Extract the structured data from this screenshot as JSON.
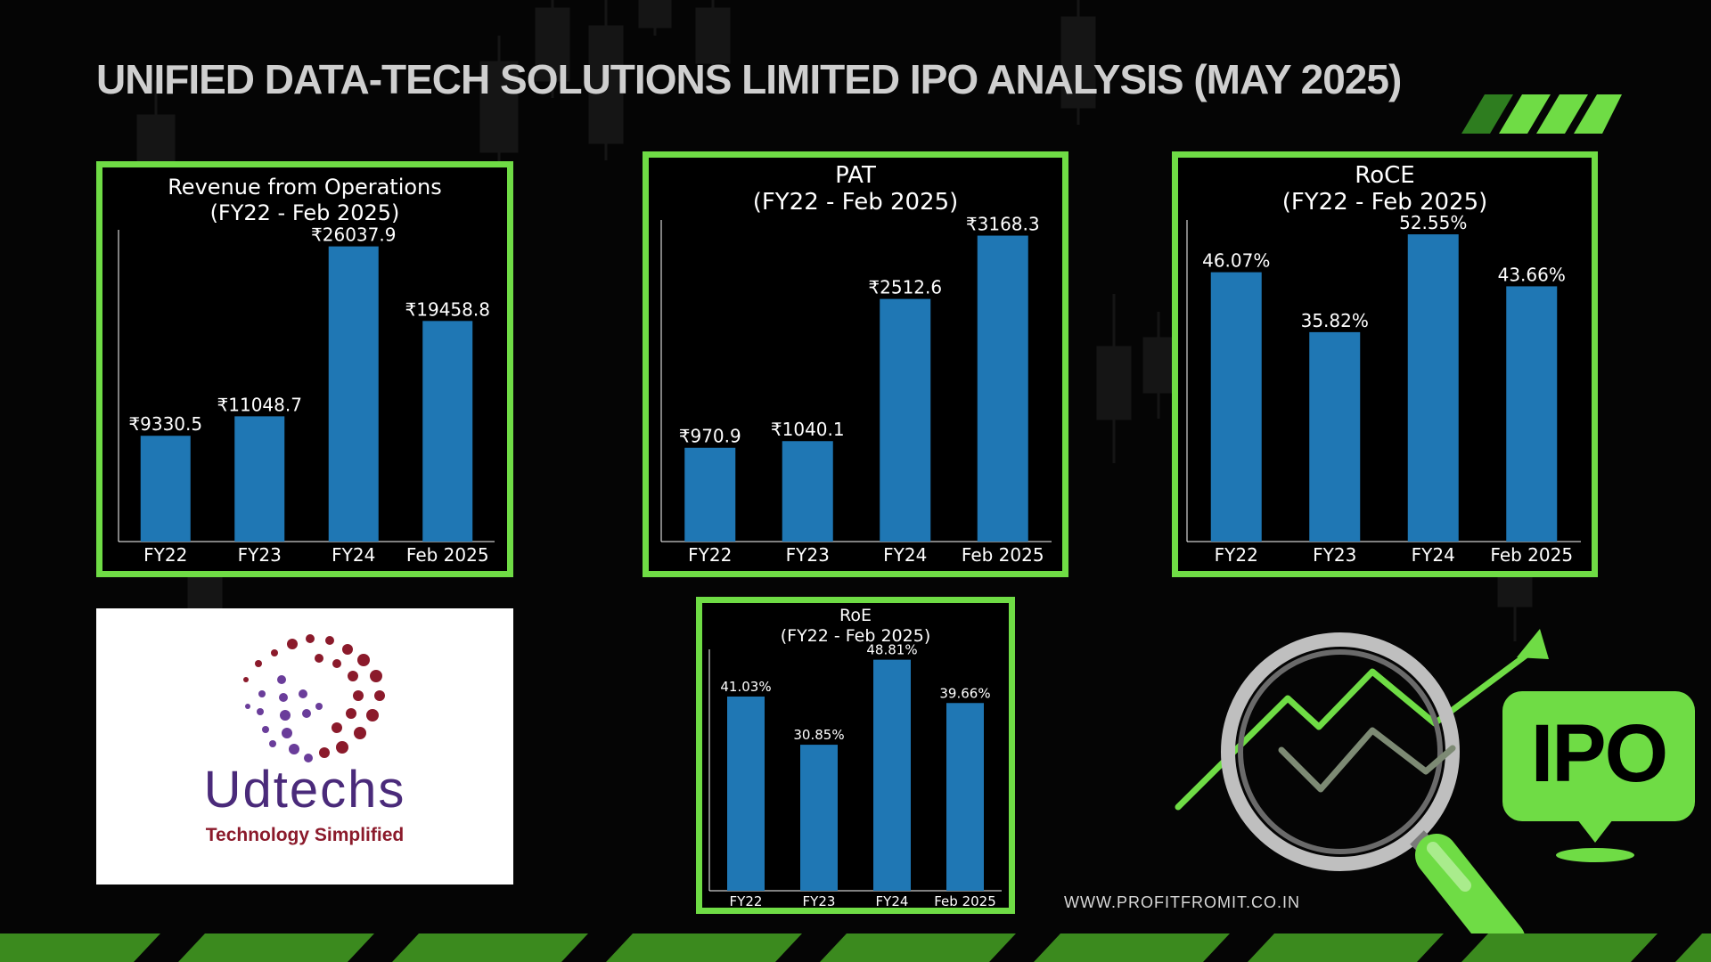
{
  "page": {
    "title": "UNIFIED DATA-TECH SOLUTIONS LIMITED IPO ANALYSIS (MAY 2025)",
    "website": "WWW.PROFITFROMIT.CO.IN",
    "logo": {
      "name": "Udtechs",
      "tagline": "Technology Simplified"
    },
    "badge": "IPO",
    "colors": {
      "accent_green": "#6fdc45",
      "bar_blue": "#1f77b4",
      "background": "#050505",
      "title_gray": "#cfcfcf"
    },
    "icons": [
      "magnifier-icon",
      "trend-arrow-icon",
      "location-pin-icon"
    ]
  },
  "chart_data": [
    {
      "id": "revenue",
      "type": "bar",
      "title": "Revenue from Operations",
      "subtitle": "(FY22 - Feb 2025)",
      "categories": [
        "FY22",
        "FY23",
        "FY24",
        "Feb 2025"
      ],
      "values": [
        9330.5,
        11048.7,
        26037.9,
        19458.8
      ],
      "data_labels": [
        "₹9330.5",
        "₹11048.7",
        "₹26037.9",
        "₹19458.8"
      ],
      "ylim": [
        0,
        27500
      ],
      "grid": false,
      "legend": "none"
    },
    {
      "id": "pat",
      "type": "bar",
      "title": "PAT",
      "subtitle": "(FY22 - Feb 2025)",
      "categories": [
        "FY22",
        "FY23",
        "FY24",
        "Feb 2025"
      ],
      "values": [
        970.9,
        1040.1,
        2512.6,
        3168.3
      ],
      "data_labels": [
        "₹970.9",
        "₹1040.1",
        "₹2512.6",
        "₹3168.3"
      ],
      "ylim": [
        0,
        3330
      ],
      "grid": false,
      "legend": "none"
    },
    {
      "id": "roce",
      "type": "bar",
      "title": "RoCE",
      "subtitle": "(FY22 - Feb 2025)",
      "categories": [
        "FY22",
        "FY23",
        "FY24",
        "Feb 2025"
      ],
      "values": [
        46.07,
        35.82,
        52.55,
        43.66
      ],
      "data_labels": [
        "46.07%",
        "35.82%",
        "52.55%",
        "43.66%"
      ],
      "ylim": [
        0,
        55
      ],
      "grid": false,
      "legend": "none"
    },
    {
      "id": "roe",
      "type": "bar",
      "title": "RoE",
      "subtitle": "(FY22 - Feb 2025)",
      "categories": [
        "FY22",
        "FY23",
        "FY24",
        "Feb 2025"
      ],
      "values": [
        41.03,
        30.85,
        48.81,
        39.66
      ],
      "data_labels": [
        "41.03%",
        "30.85%",
        "48.81%",
        "39.66%"
      ],
      "ylim": [
        0,
        51
      ],
      "grid": false,
      "legend": "none"
    }
  ]
}
